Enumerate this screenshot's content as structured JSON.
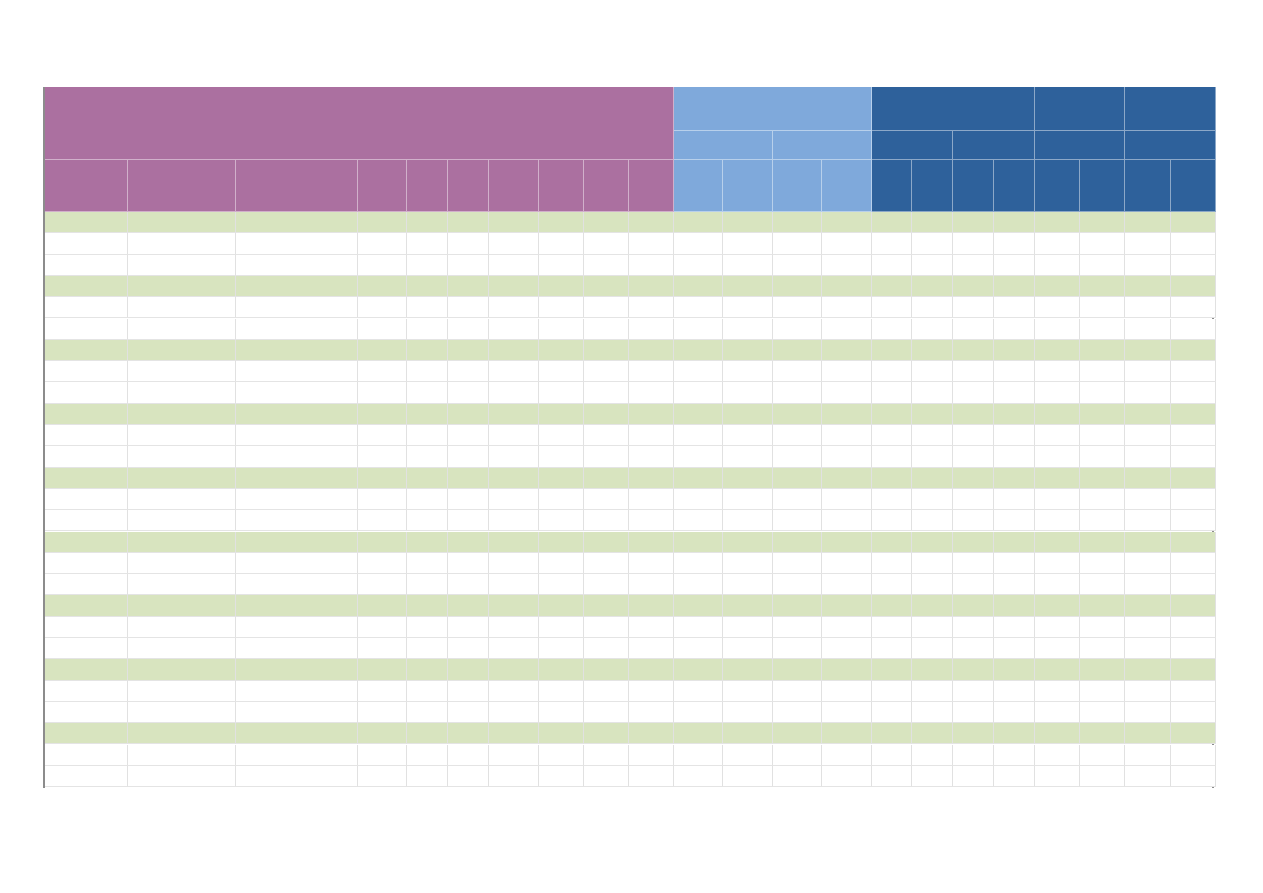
{
  "colors": {
    "group_purple": "#ab70a0",
    "group_light_blue": "#7fa9db",
    "group_dark_blue": "#2e619b",
    "band_green": "#d8e4bf",
    "row_white": "#ffffff",
    "gridline": "#e1e1e1"
  },
  "header_groups": [
    {
      "name": "group-purple",
      "color_key": "group_purple",
      "label": ""
    },
    {
      "name": "group-light-blue",
      "color_key": "group_light_blue",
      "label": ""
    },
    {
      "name": "group-dark-blue",
      "color_key": "group_dark_blue",
      "label": ""
    }
  ],
  "row_count": 27,
  "band_every": 3,
  "column_headers": [
    "",
    "",
    "",
    "",
    "",
    "",
    "",
    "",
    "",
    "",
    "",
    "",
    "",
    "",
    "",
    "",
    "",
    "",
    "",
    "",
    "",
    "",
    "",
    "",
    "",
    ""
  ],
  "rows": []
}
